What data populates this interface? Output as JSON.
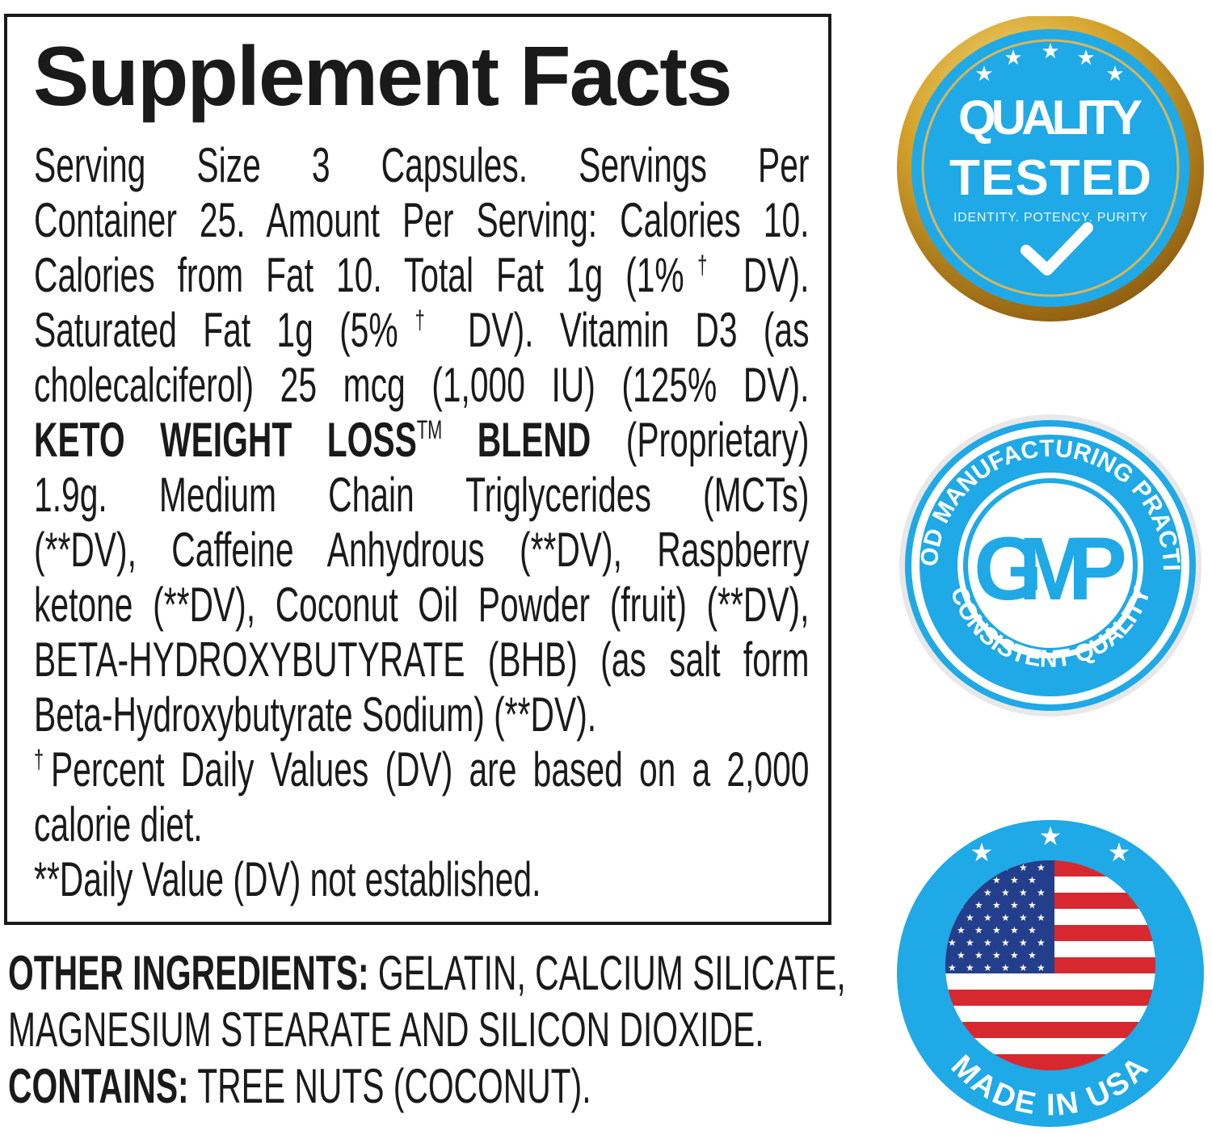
{
  "title": "Supplement Facts",
  "facts_lines": [
    {
      "justify": true,
      "segments": [
        {
          "t": "Serving Size 3 Capsules. Servings Per"
        }
      ]
    },
    {
      "justify": true,
      "segments": [
        {
          "t": "Container 25. Amount Per Serving: Calories 10."
        }
      ]
    },
    {
      "justify": true,
      "segments": [
        {
          "t": "Calories from Fat 10. Total Fat 1g (1%"
        },
        {
          "t": "†",
          "s": "sup"
        },
        {
          "t": " DV)."
        }
      ]
    },
    {
      "justify": true,
      "segments": [
        {
          "t": "Saturated Fat 1g (5%"
        },
        {
          "t": "†",
          "s": "sup"
        },
        {
          "t": " DV). Vitamin D3  (as"
        }
      ]
    },
    {
      "justify": true,
      "segments": [
        {
          "t": "cholecalciferol) 25 mcg (1,000 IU) (125% DV)."
        }
      ]
    },
    {
      "justify": true,
      "segments": [
        {
          "t": "KETO WEIGHT LOSS",
          "s": "b"
        },
        {
          "t": "TM",
          "s": "sup"
        },
        {
          "t": " BLEND",
          "s": "b"
        },
        {
          "t": " (Proprietary)"
        }
      ]
    },
    {
      "justify": true,
      "segments": [
        {
          "t": "1.9g. Medium Chain Triglycerides (MCTs)"
        }
      ]
    },
    {
      "justify": true,
      "segments": [
        {
          "t": "(**DV), Caffeine Anhydrous (**DV), Raspberry"
        }
      ]
    },
    {
      "justify": true,
      "segments": [
        {
          "t": "ketone (**DV), Coconut Oil Powder (fruit) (**DV),"
        }
      ]
    },
    {
      "justify": true,
      "segments": [
        {
          "t": "BETA-HYDROXYBUTYRATE (BHB) (as salt form"
        }
      ]
    },
    {
      "justify": false,
      "segments": [
        {
          "t": "Beta-Hydroxybutyrate Sodium) (**DV)."
        }
      ]
    },
    {
      "justify": true,
      "segments": [
        {
          "t": "†",
          "s": "sup"
        },
        {
          "t": "Percent Daily Values (DV) are based on a 2,000"
        }
      ]
    },
    {
      "justify": false,
      "segments": [
        {
          "t": "calorie diet."
        }
      ]
    },
    {
      "justify": false,
      "segments": [
        {
          "t": " **Daily Value (DV) not established."
        }
      ]
    }
  ],
  "other_lines": [
    {
      "segments": [
        {
          "t": "OTHER INGREDIENTS:",
          "s": "b"
        },
        {
          "t": " GELATIN, CALCIUM SILICATE,"
        }
      ]
    },
    {
      "segments": [
        {
          "t": "MAGNESIUM STEARATE AND SILICON DIOXIDE."
        }
      ]
    },
    {
      "segments": [
        {
          "t": "CONTAINS:",
          "s": "b"
        },
        {
          "t": " TREE NUTS (COCONUT)."
        }
      ]
    }
  ],
  "badges": {
    "quality": {
      "line1": "QUALITY",
      "line2": "TESTED",
      "tagline": "IDENTITY. POTENCY. PURITY",
      "icon": "checkmark-icon"
    },
    "gmp": {
      "center": "GMP",
      "top_arc": "GOOD MANUFACTURING PRACTICE",
      "bottom_arc": "CONSISTENT QUALITY"
    },
    "usa": {
      "label": "MADE IN USA",
      "icon": "us-flag-icon"
    }
  },
  "colors": {
    "badge_blue": "#1fa9e6",
    "gold": "#c9961e",
    "text": "#1a1a1a",
    "flag_red": "#d7282f",
    "flag_blue": "#233e8b"
  }
}
